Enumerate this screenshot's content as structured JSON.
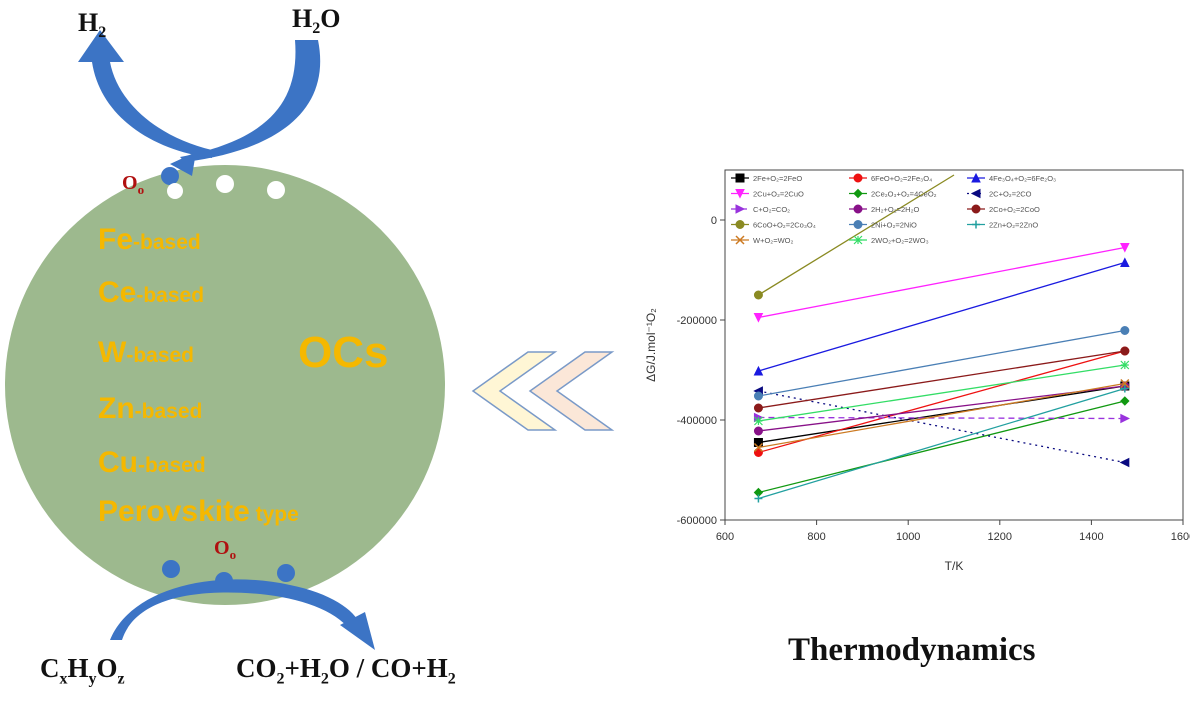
{
  "left": {
    "top_left_formula": {
      "main": "H",
      "sub": "2"
    },
    "top_right_formula": {
      "pre": "H",
      "sub": "2",
      "post": "O"
    },
    "vacancy_label_top": {
      "main": "O",
      "sub": "o"
    },
    "vacancy_label_bottom": {
      "main": "O",
      "sub": "o"
    },
    "carrier_types": [
      {
        "element": "Fe",
        "suffix": "-based"
      },
      {
        "element": "Ce",
        "suffix": "-based"
      },
      {
        "element": "W",
        "suffix": "-based"
      },
      {
        "element": "Zn",
        "suffix": "-based"
      },
      {
        "element": "Cu",
        "suffix": "-based"
      },
      {
        "element": "Perovskite",
        "suffix": " type"
      }
    ],
    "carrier_title": "OCs",
    "fuel_formula": {
      "c": "C",
      "x": "x",
      "h": "H",
      "y": "y",
      "o": "O",
      "z": "z"
    },
    "products_formula": {
      "a": "CO",
      "a_sub": "2",
      "b": "+H",
      "b_sub": "2",
      "c": "O / CO+H",
      "c_sub": "2"
    },
    "colors": {
      "sphere": "#9db98e",
      "arrow": "#3c74c5",
      "text_gold": "#f5b800",
      "vacancy_red": "#b01010"
    }
  },
  "chart_data": {
    "type": "line",
    "xlabel": "T/K",
    "ylabel": "ΔG/J.mol⁻¹O₂",
    "xlim": [
      600,
      1600
    ],
    "ylim": [
      -600000,
      100000
    ],
    "xticks": [
      600,
      800,
      1000,
      1200,
      1400,
      1600
    ],
    "yticks": [
      -600000,
      -400000,
      -200000,
      0
    ],
    "xtick_labels": [
      "600",
      "800",
      "1000",
      "1200",
      "1400",
      "1600"
    ],
    "ytick_labels": [
      "-600000",
      "-400000",
      "-200000",
      "0"
    ],
    "legend_position": "top-left",
    "series": [
      {
        "name": "2Fe+O₂=2FeO",
        "color": "#000000",
        "marker": "square",
        "dash": "",
        "x": [
          673,
          1473
        ],
        "y": [
          -445000,
          -332000
        ]
      },
      {
        "name": "6FeO+O₂=2Fe₃O₄",
        "color": "#ee1111",
        "marker": "circle",
        "dash": "",
        "x": [
          673,
          1473
        ],
        "y": [
          -465000,
          -262000
        ]
      },
      {
        "name": "4Fe₃O₄+O₂=6Fe₂O₃",
        "color": "#1a1ae0",
        "marker": "triangle",
        "dash": "",
        "x": [
          673,
          1473
        ],
        "y": [
          -302000,
          -85000
        ]
      },
      {
        "name": "2Cu+O₂=2CuO",
        "color": "#ff22ff",
        "marker": "triangle-down",
        "dash": "",
        "x": [
          673,
          1473
        ],
        "y": [
          -195000,
          -55000
        ]
      },
      {
        "name": "2Ce₂O₃+O₂=4CeO₂",
        "color": "#119911",
        "marker": "diamond",
        "dash": "",
        "x": [
          673,
          1473
        ],
        "y": [
          -545000,
          -362000
        ]
      },
      {
        "name": "2C+O₂=2CO",
        "color": "#0a0a80",
        "marker": "triangle-left",
        "dash": "2,4",
        "x": [
          673,
          1473
        ],
        "y": [
          -342000,
          -485000
        ]
      },
      {
        "name": "C+O₂=CO₂",
        "color": "#9933dd",
        "marker": "triangle-right",
        "dash": "6,4",
        "x": [
          673,
          1473
        ],
        "y": [
          -395000,
          -397000
        ]
      },
      {
        "name": "2H₂+O₂=2H₂O",
        "color": "#881188",
        "marker": "hexagon",
        "dash": "",
        "x": [
          673,
          1473
        ],
        "y": [
          -422000,
          -332000
        ]
      },
      {
        "name": "2Co+O₂=2CoO",
        "color": "#8b1a1a",
        "marker": "star",
        "dash": "",
        "x": [
          673,
          1473
        ],
        "y": [
          -376000,
          -262000
        ]
      },
      {
        "name": "6CoO+O₂=2Co₃O₄",
        "color": "#8a8a22",
        "marker": "pentagon",
        "dash": "",
        "x": [
          673,
          1100
        ],
        "y": [
          -150000,
          90000
        ]
      },
      {
        "name": "2Ni+O₂=2NiO",
        "color": "#4a7fb5",
        "marker": "circle",
        "dash": "",
        "x": [
          673,
          1473
        ],
        "y": [
          -352000,
          -221000
        ]
      },
      {
        "name": "2Zn+O₂=2ZnO",
        "color": "#22a0a0",
        "marker": "plus",
        "dash": "",
        "x": [
          673,
          1473
        ],
        "y": [
          -557000,
          -337000
        ]
      },
      {
        "name": "W+O₂=WO₂",
        "color": "#cc7a22",
        "marker": "x",
        "dash": "",
        "x": [
          673,
          1473
        ],
        "y": [
          -455000,
          -327000
        ]
      },
      {
        "name": "2WO₂+O₂=2WO₃",
        "color": "#33dd66",
        "marker": "asterisk",
        "dash": "",
        "x": [
          673,
          1473
        ],
        "y": [
          -402000,
          -290000
        ]
      }
    ]
  },
  "caption": "Thermodynamics"
}
